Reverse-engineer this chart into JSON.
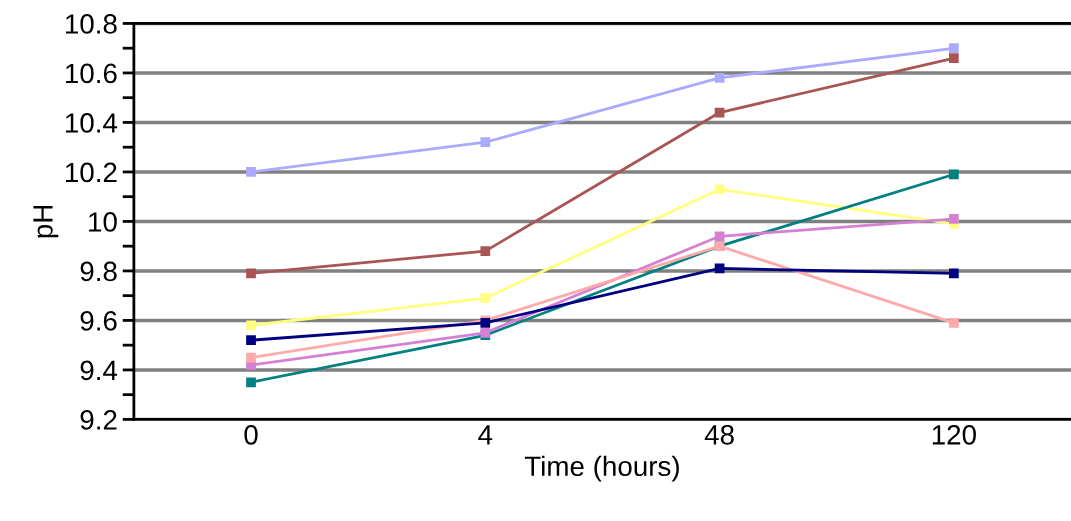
{
  "chart_data": {
    "type": "line",
    "xlabel": "Time (hours)",
    "ylabel": "pH",
    "categories": [
      "0",
      "4",
      "48",
      "120"
    ],
    "series": [
      {
        "color": "#aaaaff",
        "values": [
          10.2,
          10.32,
          10.58,
          10.7
        ]
      },
      {
        "color": "#a95555",
        "values": [
          9.79,
          9.88,
          10.44,
          10.66
        ]
      },
      {
        "color": "#ffff80",
        "values": [
          9.58,
          9.69,
          10.13,
          9.99
        ]
      },
      {
        "color": "#008080",
        "values": [
          9.35,
          9.54,
          9.9,
          10.19
        ]
      },
      {
        "color": "#d580d5",
        "values": [
          9.42,
          9.55,
          9.94,
          10.01
        ]
      },
      {
        "color": "#ffaaaa",
        "values": [
          9.45,
          9.6,
          9.9,
          9.59
        ]
      },
      {
        "color": "#000080",
        "values": [
          9.52,
          9.59,
          9.81,
          9.79
        ]
      }
    ],
    "ylim": [
      9.2,
      10.8
    ],
    "yticks": [
      9.2,
      {
        "value": 9.3,
        "label": null
      },
      9.4,
      {
        "value": 9.5,
        "label": null
      },
      9.6,
      {
        "value": 9.7,
        "label": null
      },
      9.8,
      {
        "value": 9.9,
        "label": null
      },
      10,
      {
        "value": 10.1,
        "label": null
      },
      10.2,
      {
        "value": 10.3,
        "label": null
      },
      10.4,
      {
        "value": 10.5,
        "label": null
      },
      10.6,
      {
        "value": 10.7,
        "label": null
      },
      10.8
    ],
    "grid": "y",
    "marker": "square",
    "line_style": "solid",
    "legend": false
  }
}
